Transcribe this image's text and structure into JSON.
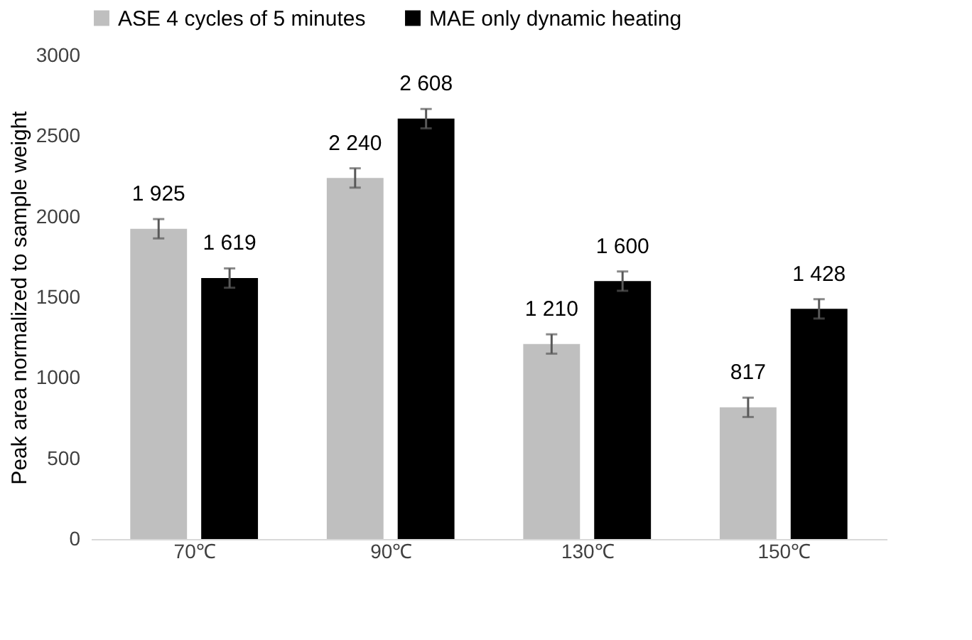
{
  "chart_data": {
    "type": "bar",
    "ylabel": "Peak area normalized to sample weight",
    "categories": [
      "70℃",
      "90℃",
      "130℃",
      "150℃"
    ],
    "series": [
      {
        "name": "ASE 4 cycles of 5 minutes",
        "color": "#bfbfbf",
        "values": [
          1925,
          2240,
          1210,
          817
        ],
        "errors": [
          60,
          60,
          60,
          60
        ],
        "value_labels": [
          "1 925",
          "2 240",
          "1 210",
          "817"
        ]
      },
      {
        "name": "MAE only dynamic heating",
        "color": "#000000",
        "values": [
          1619,
          2608,
          1600,
          1428
        ],
        "errors": [
          60,
          60,
          60,
          60
        ],
        "value_labels": [
          "1 619",
          "2 608",
          "1 600",
          "1 428"
        ]
      }
    ],
    "ylim": [
      0,
      3000
    ],
    "yticks": [
      0,
      500,
      1000,
      1500,
      2000,
      2500,
      3000
    ],
    "grid": false,
    "legend": "top"
  }
}
